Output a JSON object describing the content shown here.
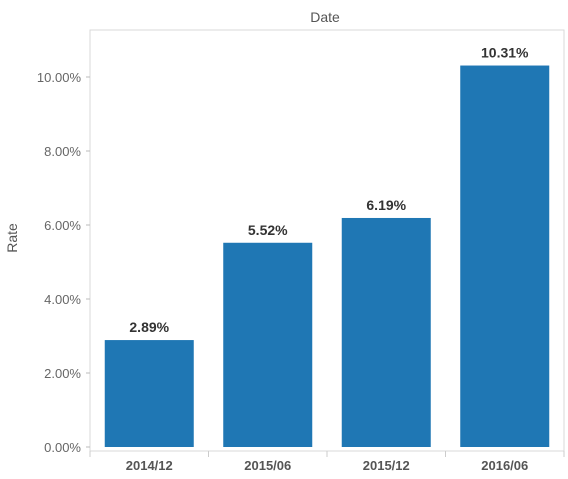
{
  "chart_data": {
    "type": "bar",
    "title": "Date",
    "xlabel": "",
    "ylabel": "Rate",
    "categories": [
      "2014/12",
      "2015/06",
      "2015/12",
      "2016/06"
    ],
    "values": [
      2.89,
      5.52,
      6.19,
      10.31
    ],
    "data_labels": [
      "2.89%",
      "5.52%",
      "6.19%",
      "10.31%"
    ],
    "ylim": [
      0,
      11.2
    ],
    "yticks": [
      0,
      2,
      4,
      6,
      8,
      10
    ],
    "ytick_labels": [
      "0.00%",
      "2.00%",
      "4.00%",
      "6.00%",
      "8.00%",
      "10.00%"
    ],
    "bar_color": "#1f77b4",
    "grid": false,
    "legend": "none"
  }
}
